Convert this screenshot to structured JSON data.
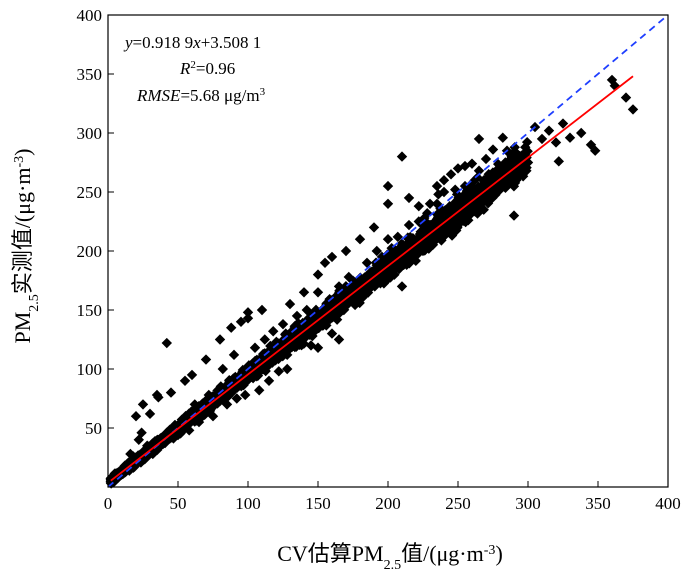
{
  "chart_data": {
    "type": "scatter",
    "xlabel": {
      "pre": "CV估算PM",
      "sub": "2.5",
      "mid": "值/(μg·m",
      "sup": "-3",
      "post": ")"
    },
    "ylabel": {
      "pre": "PM",
      "sub": "2.5",
      "mid": "实测值/(μg·m",
      "sup": "-3",
      "post": ")"
    },
    "xlim": [
      0,
      400
    ],
    "ylim": [
      0,
      400
    ],
    "xticks": [
      0,
      50,
      100,
      150,
      200,
      250,
      300,
      350,
      400
    ],
    "yticks": [
      50,
      100,
      150,
      200,
      250,
      300,
      350,
      400
    ],
    "xtick_labels": [
      "0",
      "50",
      "100",
      "150",
      "200",
      "250",
      "300",
      "350",
      "400"
    ],
    "ytick_labels": [
      "50",
      "100",
      "150",
      "200",
      "250",
      "300",
      "350",
      "400"
    ],
    "grid": false,
    "annotation": {
      "equation": {
        "y": "y",
        "eq": "=0.918 9",
        "x": "x",
        "rest": "+3.508 1"
      },
      "r2": {
        "r": "R",
        "sup": "2",
        "rest": "=0.96"
      },
      "rmse": {
        "name": "RMSE",
        "rest": "=5.68 μg/m",
        "sup": "3"
      }
    },
    "fit_line": {
      "slope": 0.9189,
      "intercept": 3.5081,
      "x_range": [
        2,
        375
      ],
      "color": "#ff0000",
      "style": "solid"
    },
    "identity_line": {
      "slope": 1,
      "intercept": 0,
      "x_range": [
        0,
        400
      ],
      "color": "#1f3fff",
      "style": "dashed"
    },
    "marker": {
      "shape": "diamond",
      "color": "#000000"
    },
    "dense_band": {
      "description_free": true,
      "slope": 0.9189,
      "intercept": 3.5081,
      "x_range": [
        2,
        300
      ],
      "spread_y": [
        4,
        22
      ],
      "count": 2600
    },
    "points": [
      [
        42,
        122
      ],
      [
        36,
        76
      ],
      [
        25,
        70
      ],
      [
        20,
        60
      ],
      [
        30,
        62
      ],
      [
        35,
        78
      ],
      [
        45,
        80
      ],
      [
        55,
        90
      ],
      [
        60,
        95
      ],
      [
        70,
        108
      ],
      [
        80,
        125
      ],
      [
        88,
        135
      ],
      [
        95,
        140
      ],
      [
        100,
        148
      ],
      [
        118,
        132
      ],
      [
        100,
        143
      ],
      [
        110,
        150
      ],
      [
        130,
        155
      ],
      [
        140,
        165
      ],
      [
        150,
        180
      ],
      [
        155,
        190
      ],
      [
        160,
        195
      ],
      [
        170,
        200
      ],
      [
        180,
        210
      ],
      [
        190,
        220
      ],
      [
        200,
        240
      ],
      [
        215,
        245
      ],
      [
        222,
        238
      ],
      [
        230,
        240
      ],
      [
        235,
        255
      ],
      [
        240,
        260
      ],
      [
        245,
        265
      ],
      [
        250,
        270
      ],
      [
        255,
        272
      ],
      [
        260,
        274
      ],
      [
        265,
        268
      ],
      [
        270,
        278
      ],
      [
        275,
        286
      ],
      [
        282,
        296
      ],
      [
        290,
        230
      ],
      [
        300,
        275
      ],
      [
        298,
        270
      ],
      [
        305,
        305
      ],
      [
        310,
        295
      ],
      [
        315,
        302
      ],
      [
        320,
        292
      ],
      [
        322,
        276
      ],
      [
        325,
        308
      ],
      [
        330,
        296
      ],
      [
        338,
        300
      ],
      [
        345,
        290
      ],
      [
        348,
        285
      ],
      [
        360,
        345
      ],
      [
        362,
        340
      ],
      [
        370,
        330
      ],
      [
        375,
        320
      ],
      [
        285,
        285
      ],
      [
        265,
        295
      ],
      [
        240,
        250
      ],
      [
        210,
        170
      ],
      [
        198,
        180
      ],
      [
        185,
        165
      ],
      [
        175,
        165
      ],
      [
        165,
        125
      ],
      [
        160,
        130
      ],
      [
        150,
        118
      ],
      [
        145,
        120
      ],
      [
        210,
        280
      ],
      [
        200,
        255
      ],
      [
        190,
        175
      ],
      [
        178,
        160
      ],
      [
        168,
        150
      ],
      [
        128,
        100
      ],
      [
        122,
        98
      ],
      [
        115,
        90
      ],
      [
        108,
        82
      ],
      [
        98,
        78
      ],
      [
        92,
        75
      ],
      [
        85,
        70
      ],
      [
        75,
        60
      ],
      [
        65,
        55
      ],
      [
        58,
        48
      ],
      [
        50,
        44
      ],
      [
        40,
        38
      ],
      [
        32,
        28
      ],
      [
        28,
        35
      ],
      [
        22,
        40
      ],
      [
        18,
        26
      ],
      [
        14,
        20
      ],
      [
        10,
        14
      ],
      [
        8,
        12
      ],
      [
        6,
        10
      ],
      [
        5,
        9
      ],
      [
        12,
        18
      ],
      [
        16,
        28
      ],
      [
        24,
        46
      ],
      [
        48,
        52
      ],
      [
        62,
        70
      ],
      [
        72,
        78
      ],
      [
        82,
        100
      ],
      [
        90,
        112
      ],
      [
        105,
        118
      ],
      [
        112,
        125
      ],
      [
        125,
        138
      ],
      [
        135,
        145
      ],
      [
        142,
        150
      ],
      [
        150,
        165
      ],
      [
        156,
        155
      ],
      [
        165,
        170
      ],
      [
        172,
        178
      ],
      [
        185,
        190
      ],
      [
        192,
        200
      ],
      [
        200,
        210
      ],
      [
        207,
        212
      ],
      [
        215,
        222
      ],
      [
        222,
        225
      ],
      [
        228,
        232
      ],
      [
        235,
        240
      ],
      [
        248,
        252
      ],
      [
        255,
        255
      ],
      [
        262,
        260
      ],
      [
        275,
        265
      ],
      [
        280,
        270
      ],
      [
        243,
        222
      ],
      [
        252,
        230
      ],
      [
        230,
        215
      ],
      [
        218,
        205
      ],
      [
        205,
        195
      ],
      [
        195,
        186
      ],
      [
        188,
        178
      ],
      [
        236,
        248
      ],
      [
        226,
        228
      ],
      [
        138,
        125
      ],
      [
        132,
        120
      ],
      [
        128,
        112
      ]
    ]
  }
}
